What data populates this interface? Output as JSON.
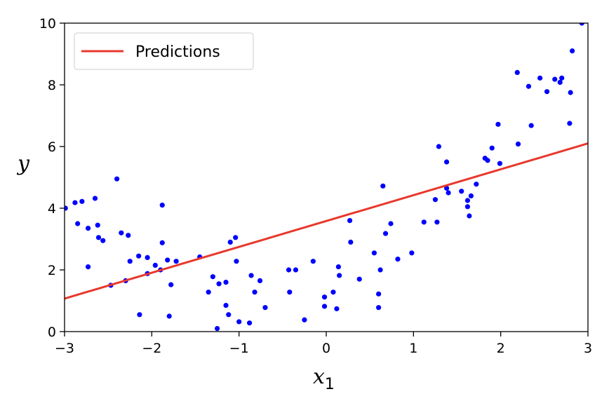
{
  "chart_data": {
    "type": "scatter",
    "xlabel": "x",
    "xlabel_sub": "1",
    "ylabel": "y",
    "xlim": [
      -3,
      3
    ],
    "ylim": [
      0,
      10
    ],
    "xticks": [
      -3,
      -2,
      -1,
      0,
      1,
      2,
      3
    ],
    "xtick_labels": [
      "−3",
      "−2",
      "−1",
      "0",
      "1",
      "2",
      "3"
    ],
    "yticks": [
      0,
      2,
      4,
      6,
      8,
      10
    ],
    "ytick_labels": [
      "0",
      "2",
      "4",
      "6",
      "8",
      "10"
    ],
    "grid": false,
    "legend_position": "top-left",
    "series": [
      {
        "name": "",
        "kind": "scatter",
        "color": "#0000ff",
        "points": [
          [
            -2.99,
            4.0
          ],
          [
            -2.88,
            4.18
          ],
          [
            -2.85,
            3.5
          ],
          [
            -2.8,
            4.22
          ],
          [
            -2.73,
            2.1
          ],
          [
            -2.73,
            3.35
          ],
          [
            -2.65,
            4.32
          ],
          [
            -2.62,
            3.45
          ],
          [
            -2.61,
            3.05
          ],
          [
            -2.56,
            2.95
          ],
          [
            -2.47,
            1.5
          ],
          [
            -2.4,
            4.95
          ],
          [
            -2.35,
            3.2
          ],
          [
            -2.3,
            1.65
          ],
          [
            -2.27,
            3.12
          ],
          [
            -2.25,
            2.28
          ],
          [
            -2.15,
            2.45
          ],
          [
            -2.14,
            0.55
          ],
          [
            -2.05,
            2.4
          ],
          [
            -2.05,
            1.88
          ],
          [
            -1.96,
            2.15
          ],
          [
            -1.9,
            2.0
          ],
          [
            -1.88,
            4.1
          ],
          [
            -1.88,
            2.88
          ],
          [
            -1.82,
            2.32
          ],
          [
            -1.8,
            0.5
          ],
          [
            -1.78,
            1.52
          ],
          [
            -1.72,
            2.28
          ],
          [
            -1.45,
            2.42
          ],
          [
            -1.35,
            1.28
          ],
          [
            -1.3,
            1.78
          ],
          [
            -1.25,
            0.1
          ],
          [
            -1.23,
            1.55
          ],
          [
            -1.15,
            0.85
          ],
          [
            -1.15,
            1.6
          ],
          [
            -1.12,
            0.55
          ],
          [
            -1.1,
            2.9
          ],
          [
            -1.04,
            3.05
          ],
          [
            -1.03,
            2.28
          ],
          [
            -1.0,
            0.32
          ],
          [
            -0.88,
            0.28
          ],
          [
            -0.86,
            1.82
          ],
          [
            -0.82,
            1.28
          ],
          [
            -0.76,
            1.65
          ],
          [
            -0.7,
            0.78
          ],
          [
            -0.43,
            2.0
          ],
          [
            -0.42,
            1.28
          ],
          [
            -0.35,
            2.0
          ],
          [
            -0.25,
            0.38
          ],
          [
            -0.15,
            2.28
          ],
          [
            -0.02,
            0.82
          ],
          [
            -0.02,
            1.12
          ],
          [
            0.08,
            1.28
          ],
          [
            0.12,
            0.74
          ],
          [
            0.14,
            2.1
          ],
          [
            0.15,
            1.82
          ],
          [
            0.27,
            3.6
          ],
          [
            0.28,
            2.9
          ],
          [
            0.38,
            1.7
          ],
          [
            0.55,
            2.55
          ],
          [
            0.6,
            0.78
          ],
          [
            0.6,
            1.22
          ],
          [
            0.62,
            2.0
          ],
          [
            0.65,
            4.72
          ],
          [
            0.68,
            3.18
          ],
          [
            0.74,
            3.5
          ],
          [
            0.82,
            2.35
          ],
          [
            0.98,
            2.55
          ],
          [
            1.12,
            3.55
          ],
          [
            1.25,
            4.28
          ],
          [
            1.27,
            3.55
          ],
          [
            1.29,
            6.0
          ],
          [
            1.38,
            5.5
          ],
          [
            1.38,
            4.65
          ],
          [
            1.4,
            4.5
          ],
          [
            1.55,
            4.55
          ],
          [
            1.62,
            4.25
          ],
          [
            1.62,
            4.05
          ],
          [
            1.64,
            3.75
          ],
          [
            1.66,
            4.4
          ],
          [
            1.72,
            4.78
          ],
          [
            1.82,
            5.62
          ],
          [
            1.85,
            5.55
          ],
          [
            1.9,
            5.95
          ],
          [
            1.97,
            6.72
          ],
          [
            1.99,
            5.45
          ],
          [
            2.19,
            8.4
          ],
          [
            2.2,
            6.08
          ],
          [
            2.32,
            7.95
          ],
          [
            2.35,
            6.68
          ],
          [
            2.45,
            8.22
          ],
          [
            2.53,
            7.78
          ],
          [
            2.62,
            8.18
          ],
          [
            2.68,
            8.08
          ],
          [
            2.7,
            8.22
          ],
          [
            2.79,
            6.75
          ],
          [
            2.8,
            7.75
          ],
          [
            2.82,
            9.1
          ],
          [
            2.93,
            10.0
          ]
        ]
      },
      {
        "name": "Predictions",
        "kind": "line",
        "color": "#e8382c",
        "points": [
          [
            -3,
            1.07
          ],
          [
            3,
            6.1
          ]
        ]
      }
    ]
  }
}
